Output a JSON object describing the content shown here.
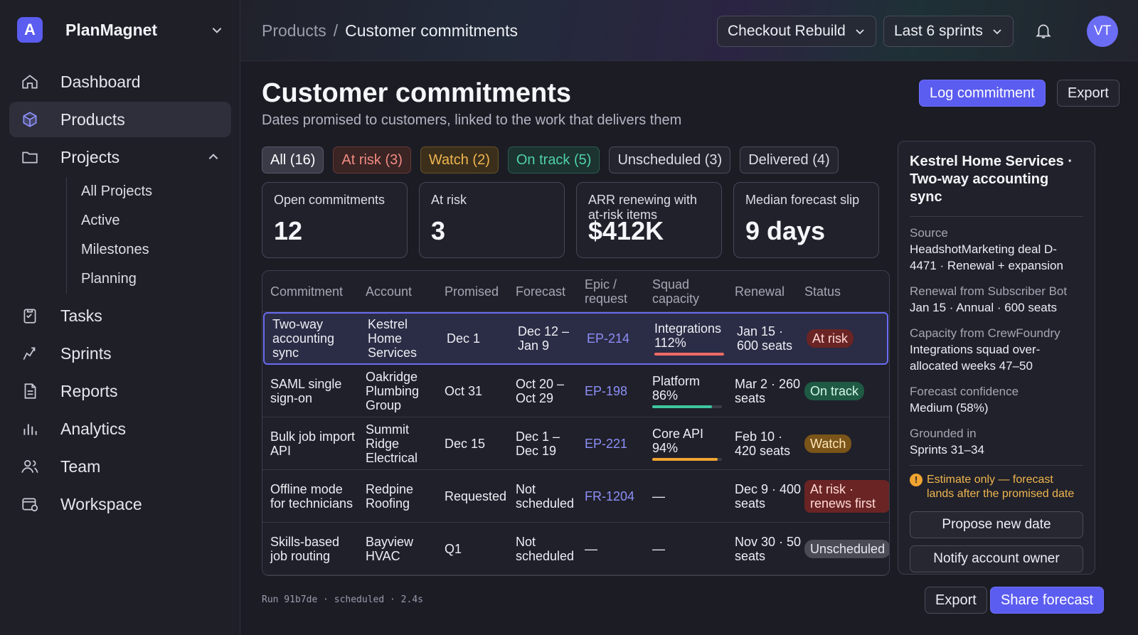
{
  "brand": {
    "name": "PlanMagnet",
    "logo_letter": "A",
    "accent": "#5b5cf0"
  },
  "sidebar": {
    "items": [
      {
        "label": "Dashboard",
        "icon": "home-icon"
      },
      {
        "label": "Products",
        "icon": "cube-icon",
        "active": true
      },
      {
        "label": "Projects",
        "icon": "folder-icon",
        "expanded": true
      },
      {
        "label": "Tasks",
        "icon": "clipboard-icon"
      },
      {
        "label": "Sprints",
        "icon": "sprint-icon"
      },
      {
        "label": "Reports",
        "icon": "document-icon"
      },
      {
        "label": "Analytics",
        "icon": "bar-chart-icon"
      },
      {
        "label": "Team",
        "icon": "users-icon"
      },
      {
        "label": "Workspace",
        "icon": "workspace-icon"
      }
    ],
    "projects_sub": [
      "All Projects",
      "Active",
      "Milestones",
      "Planning"
    ]
  },
  "topbar": {
    "breadcrumb_root": "Products",
    "breadcrumb_sep": "/",
    "breadcrumb_current": "Customer commitments",
    "project_select": "Checkout Rebuild",
    "range_select": "Last 6 sprints",
    "avatar_initials": "VT"
  },
  "page": {
    "title": "Customer commitments",
    "subtitle": "Dates promised to customers, linked to the work that delivers them",
    "log_button": "Log commitment",
    "export_button": "Export"
  },
  "filters": [
    {
      "label": "All (16)",
      "kind": "all"
    },
    {
      "label": "At risk (3)",
      "kind": "risk"
    },
    {
      "label": "Watch (2)",
      "kind": "watch"
    },
    {
      "label": "On track (5)",
      "kind": "track"
    },
    {
      "label": "Unscheduled (3)",
      "kind": "plain"
    },
    {
      "label": "Delivered (4)",
      "kind": "plain"
    }
  ],
  "stats": [
    {
      "label": "Open commitments",
      "value": "12"
    },
    {
      "label": "At risk",
      "value": "3"
    },
    {
      "label": "ARR renewing with at-risk items",
      "value": "$412K"
    },
    {
      "label": "Median forecast slip",
      "value": "9 days"
    }
  ],
  "table": {
    "headers": [
      "Commitment",
      "Account",
      "Promised",
      "Forecast",
      "Epic / request",
      "Squad capacity",
      "Renewal",
      "Status"
    ],
    "rows": [
      {
        "commitment": "Two-way accounting sync",
        "account": "Kestrel Home Services",
        "promised": "Dec 1",
        "forecast": "Dec 12 – Jan 9",
        "epic": "EP-214",
        "squad": "Integrations 112%",
        "capacity": 1.0,
        "bar_color": "#ef6b66",
        "renewal": "Jan 15 · 600 seats",
        "status": "At risk",
        "status_kind": "risk",
        "selected": true
      },
      {
        "commitment": "SAML single sign-on",
        "account": "Oakridge Plumbing Group",
        "promised": "Oct 31",
        "forecast": "Oct 20 – Oct 29",
        "epic": "EP-198",
        "squad": "Platform 86%",
        "capacity": 0.86,
        "bar_color": "#3fc6a0",
        "renewal": "Mar 2 · 260 seats",
        "status": "On track",
        "status_kind": "track"
      },
      {
        "commitment": "Bulk job import API",
        "account": "Summit Ridge Electrical",
        "promised": "Dec 15",
        "forecast": "Dec 1 – Dec 19",
        "epic": "EP-221",
        "squad": "Core API 94%",
        "capacity": 0.94,
        "bar_color": "#f0a431",
        "renewal": "Feb 10 · 420 seats",
        "status": "Watch",
        "status_kind": "watch"
      },
      {
        "commitment": "Offline mode for technicians",
        "account": "Redpine Roofing",
        "promised": "Requested",
        "forecast": "Not scheduled",
        "epic": "FR-1204",
        "squad": "—",
        "renewal": "Dec 9 · 400 seats",
        "status": "At risk · renews first",
        "status_kind": "risk2"
      },
      {
        "commitment": "Skills-based job routing",
        "account": "Bayview HVAC",
        "promised": "Q1",
        "forecast": "Not scheduled",
        "epic": "—",
        "squad": "—",
        "renewal": "Nov 30 · 50 seats",
        "status": "Unscheduled",
        "status_kind": "unsched"
      }
    ]
  },
  "panel": {
    "title": "Kestrel Home Services · Two-way accounting sync",
    "blocks": [
      {
        "label": "Source",
        "value": "HeadshotMarketing deal D-4471 · Renewal + expansion"
      },
      {
        "label": "Renewal from Subscriber Bot",
        "value": "Jan 15 · Annual · 600 seats"
      },
      {
        "label": "Capacity from CrewFoundry",
        "value": "Integrations squad over-allocated weeks 47–50"
      },
      {
        "label": "Forecast confidence",
        "value": "Medium (58%)"
      },
      {
        "label": "Grounded in",
        "value": "Sprints 31–34"
      }
    ],
    "warning": "Estimate only — forecast lands after the promised date",
    "propose_button": "Propose new date",
    "notify_button": "Notify account owner"
  },
  "footer": {
    "run_info": "Run 91b7de · scheduled · 2.4s",
    "export_button": "Export",
    "share_button": "Share forecast"
  }
}
